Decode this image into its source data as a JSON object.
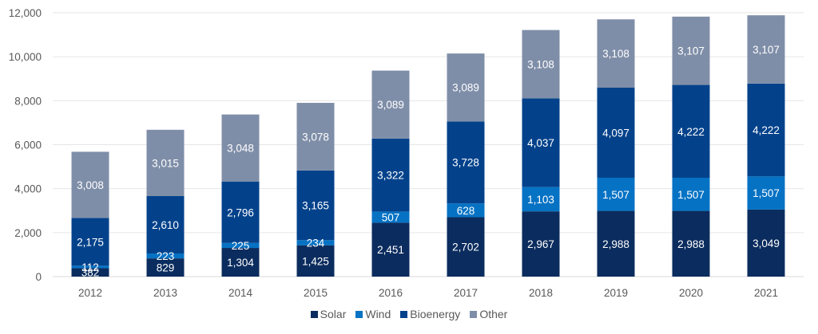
{
  "chart_data": {
    "type": "bar",
    "stacked": true,
    "title": "",
    "xlabel": "",
    "ylabel": "",
    "categories": [
      "2012",
      "2013",
      "2014",
      "2015",
      "2016",
      "2017",
      "2018",
      "2019",
      "2020",
      "2021"
    ],
    "series": [
      {
        "name": "Solar",
        "color": "#0b2c5e",
        "values": [
          382,
          829,
          1304,
          1425,
          2451,
          2702,
          2967,
          2988,
          2988,
          3049
        ],
        "labels": [
          "382",
          "829",
          "1,304",
          "1,425",
          "2,451",
          "2,702",
          "2,967",
          "2,988",
          "2,988",
          "3,049"
        ]
      },
      {
        "name": "Wind",
        "color": "#0572c4",
        "values": [
          112,
          223,
          225,
          234,
          507,
          628,
          1103,
          1507,
          1507,
          1507
        ],
        "labels": [
          "112",
          "223",
          "225",
          "234",
          "507",
          "628",
          "1,103",
          "1,507",
          "1,507",
          "1,507"
        ]
      },
      {
        "name": "Bioenergy",
        "color": "#03428b",
        "values": [
          2175,
          2610,
          2796,
          3165,
          3322,
          3728,
          4037,
          4097,
          4222,
          4222
        ],
        "labels": [
          "2,175",
          "2,610",
          "2,796",
          "3,165",
          "3,322",
          "3,728",
          "4,037",
          "4,097",
          "4,222",
          "4,222"
        ]
      },
      {
        "name": "Other",
        "color": "#7f8ea8",
        "values": [
          3008,
          3015,
          3048,
          3078,
          3089,
          3089,
          3108,
          3108,
          3107,
          3107
        ],
        "labels": [
          "3,008",
          "3,015",
          "3,048",
          "3,078",
          "3,089",
          "3,089",
          "3,108",
          "3,108",
          "3,107",
          "3,107"
        ]
      }
    ],
    "ylim": [
      0,
      12000
    ],
    "yticks": [
      0,
      2000,
      4000,
      6000,
      8000,
      10000,
      12000
    ],
    "ytick_labels": [
      "0",
      "2,000",
      "4,000",
      "6,000",
      "8,000",
      "10,000",
      "12,000"
    ],
    "grid": true,
    "legend_position": "bottom-center"
  }
}
